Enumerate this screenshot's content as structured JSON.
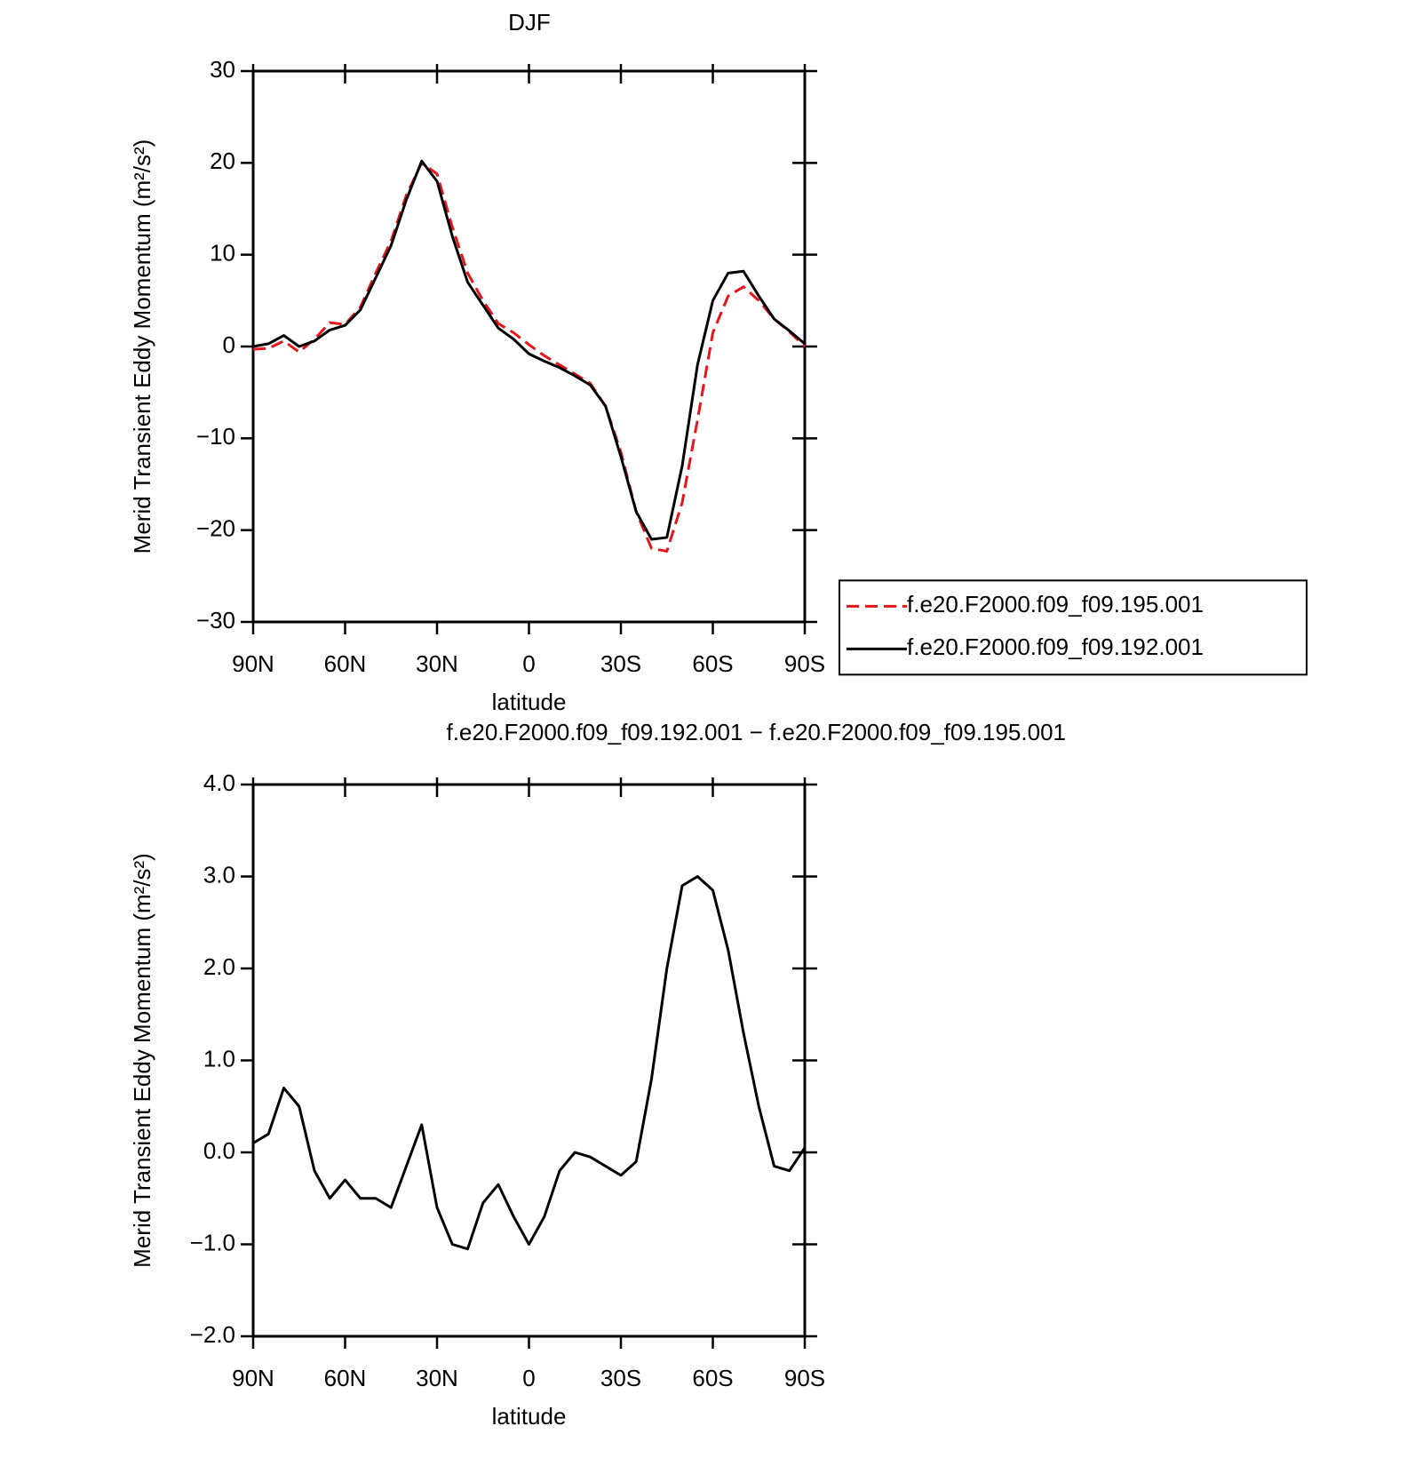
{
  "chart_data": [
    {
      "type": "line",
      "title": "DJF",
      "xlabel": "latitude",
      "ylabel": "Merid Transient Eddy Momentum (m²/s²)",
      "x": [
        90,
        85,
        80,
        75,
        70,
        65,
        60,
        55,
        50,
        45,
        40,
        35,
        30,
        25,
        20,
        15,
        10,
        5,
        0,
        -5,
        -10,
        -15,
        -20,
        -25,
        -30,
        -35,
        -40,
        -45,
        -50,
        -55,
        -60,
        -65,
        -70,
        -75,
        -80,
        -85,
        -90
      ],
      "xlim": [
        90,
        -90
      ],
      "xticks": [
        {
          "value": 90,
          "label": "90N"
        },
        {
          "value": 60,
          "label": "60N"
        },
        {
          "value": 30,
          "label": "30N"
        },
        0,
        {
          "value": -30,
          "label": "30S"
        },
        {
          "value": -60,
          "label": "60S"
        },
        {
          "value": -90,
          "label": "90S"
        }
      ],
      "ylim": [
        -30,
        30
      ],
      "yticks": [
        {
          "value": -30,
          "label": "−30"
        },
        {
          "value": -20,
          "label": "−20"
        },
        {
          "value": -10,
          "label": "−10"
        },
        0,
        10,
        20,
        30
      ],
      "legend": "right",
      "series": [
        {
          "name": "f.e20.F2000.f09_f09.195.001",
          "color": "#e8141a",
          "line_style": "dashed",
          "values": [
            -0.3,
            -0.2,
            0.6,
            -0.6,
            0.8,
            2.6,
            2.4,
            4.3,
            8,
            11.5,
            16.5,
            20,
            18.8,
            13,
            8,
            5,
            2.5,
            1.5,
            0.2,
            -1,
            -2,
            -3,
            -4,
            -6.5,
            -11.5,
            -18,
            -22,
            -22.3,
            -17,
            -8,
            1.5,
            5.5,
            6.5,
            5,
            3,
            1.6,
            0
          ]
        },
        {
          "name": "f.e20.F2000.f09_f09.192.001",
          "color": "#000000",
          "line_style": "solid",
          "values": [
            0,
            0.3,
            1.2,
            0,
            0.6,
            1.8,
            2.3,
            4,
            7.5,
            11,
            16,
            20.2,
            18,
            12,
            7,
            4.5,
            2,
            0.8,
            -0.8,
            -1.6,
            -2.3,
            -3.2,
            -4.2,
            -6.5,
            -12,
            -18,
            -21,
            -20.8,
            -13,
            -2,
            5,
            8,
            8.2,
            5.5,
            3,
            1.7,
            0.3
          ]
        }
      ]
    },
    {
      "type": "line",
      "title": "f.e20.F2000.f09_f09.192.001 − f.e20.F2000.f09_f09.195.001",
      "xlabel": "latitude",
      "ylabel": "Merid Transient Eddy Momentum (m²/s²)",
      "x": [
        90,
        85,
        80,
        75,
        70,
        65,
        60,
        55,
        50,
        45,
        40,
        35,
        30,
        25,
        20,
        15,
        10,
        5,
        0,
        -5,
        -10,
        -15,
        -20,
        -25,
        -30,
        -35,
        -40,
        -45,
        -50,
        -55,
        -60,
        -65,
        -70,
        -75,
        -80,
        -85,
        -90
      ],
      "xlim": [
        90,
        -90
      ],
      "xticks": [
        {
          "value": 90,
          "label": "90N"
        },
        {
          "value": 60,
          "label": "60N"
        },
        {
          "value": 30,
          "label": "30N"
        },
        0,
        {
          "value": -30,
          "label": "30S"
        },
        {
          "value": -60,
          "label": "60S"
        },
        {
          "value": -90,
          "label": "90S"
        }
      ],
      "ylim": [
        -2,
        4
      ],
      "yticks": [
        {
          "value": -2,
          "label": "−2.0"
        },
        {
          "value": -1,
          "label": "−1.0"
        },
        {
          "value": 0,
          "label": "0.0"
        },
        {
          "value": 1,
          "label": "1.0"
        },
        {
          "value": 2,
          "label": "2.0"
        },
        {
          "value": 3,
          "label": "3.0"
        },
        {
          "value": 4,
          "label": "4.0"
        }
      ],
      "series": [
        {
          "color": "#000000",
          "line_style": "solid",
          "values": [
            0.1,
            0.2,
            0.7,
            0.5,
            -0.2,
            -0.5,
            -0.3,
            -0.5,
            -0.5,
            -0.6,
            -0.15,
            0.3,
            -0.6,
            -1.0,
            -1.05,
            -0.55,
            -0.35,
            -0.7,
            -1.0,
            -0.7,
            -0.2,
            0.0,
            -0.05,
            -0.15,
            -0.25,
            -0.1,
            0.8,
            2.0,
            2.9,
            3.0,
            2.85,
            2.2,
            1.3,
            0.5,
            -0.15,
            -0.2,
            0.05
          ]
        }
      ]
    }
  ]
}
